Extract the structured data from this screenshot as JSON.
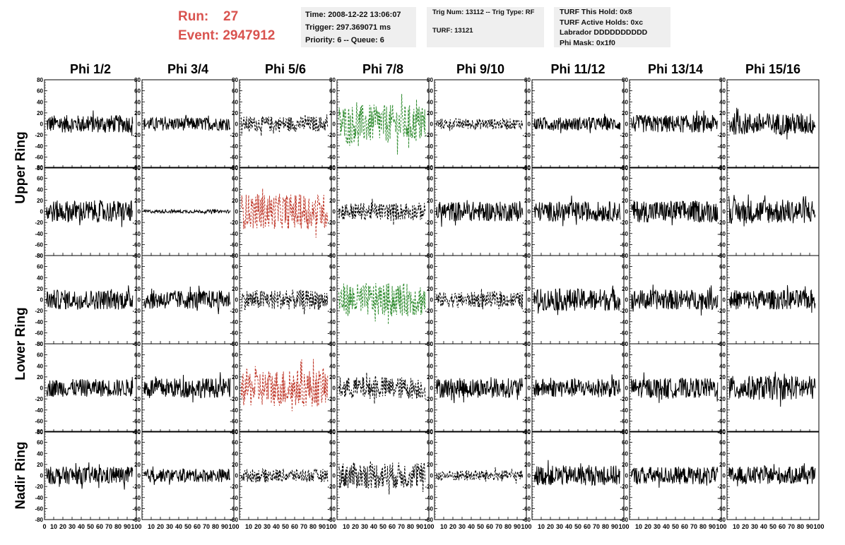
{
  "header": {
    "run_label": "Run:",
    "run_value": "27",
    "event_label": "Event:",
    "event_value": "2947912",
    "time": "Time: 2008-12-22 13:06:07",
    "trigger": "Trigger: 297.369071 ms",
    "priority": "Priority: 6 -- Queue: 6",
    "trig_num": "Trig Num: 13112 -- Trig Type: RF",
    "turf": "TURF: 13121",
    "turf_this_hold": "TURF This Hold: 0x8",
    "turf_active_holds": "TURF Active Holds: 0xc",
    "labrador": "Labrador DDDDDDDDDD",
    "phi_mask": "Phi Mask: 0x1f0"
  },
  "chart_data": {
    "type": "line",
    "columns": [
      "Phi 1/2",
      "Phi 3/4",
      "Phi 5/6",
      "Phi 7/8",
      "Phi 9/10",
      "Phi 11/12",
      "Phi 13/14",
      "Phi 15/16"
    ],
    "ring_labels": [
      "Upper Ring",
      "Lower Ring",
      "Nadir Ring"
    ],
    "rows_per_ring": [
      2,
      2,
      1
    ],
    "ylim": [
      -80,
      80
    ],
    "yticks": [
      -80,
      -60,
      -40,
      -20,
      0,
      20,
      40,
      60,
      80
    ],
    "xlim": [
      0,
      100
    ],
    "xticks": [
      0,
      10,
      20,
      30,
      40,
      50,
      60,
      70,
      80,
      90,
      100
    ],
    "panels": [
      [
        {
          "style": "solid",
          "color": "#000000",
          "amp": 16
        },
        {
          "style": "solid",
          "color": "#000000",
          "amp": 12
        },
        {
          "style": "dashed",
          "color": "#000000",
          "amp": 14
        },
        {
          "style": "dashed",
          "color": "#2e8b2e",
          "amp": 35
        },
        {
          "style": "dashed",
          "color": "#000000",
          "amp": 10
        },
        {
          "style": "solid",
          "color": "#000000",
          "amp": 12
        },
        {
          "style": "solid",
          "color": "#000000",
          "amp": 16
        },
        {
          "style": "solid",
          "color": "#000000",
          "amp": 20
        }
      ],
      [
        {
          "style": "solid",
          "color": "#000000",
          "amp": 20
        },
        {
          "style": "solid",
          "color": "#000000",
          "amp": 3
        },
        {
          "style": "dashed",
          "color": "#c0392b",
          "amp": 32
        },
        {
          "style": "dashed",
          "color": "#000000",
          "amp": 16
        },
        {
          "style": "solid",
          "color": "#000000",
          "amp": 18
        },
        {
          "style": "solid",
          "color": "#000000",
          "amp": 18
        },
        {
          "style": "solid",
          "color": "#000000",
          "amp": 20
        },
        {
          "style": "solid",
          "color": "#000000",
          "amp": 22
        }
      ],
      [
        {
          "style": "solid",
          "color": "#000000",
          "amp": 18
        },
        {
          "style": "solid",
          "color": "#000000",
          "amp": 17
        },
        {
          "style": "dashed",
          "color": "#000000",
          "amp": 18
        },
        {
          "style": "dashed",
          "color": "#2e8b2e",
          "amp": 30
        },
        {
          "style": "dashed",
          "color": "#000000",
          "amp": 14
        },
        {
          "style": "solid",
          "color": "#000000",
          "amp": 20
        },
        {
          "style": "solid",
          "color": "#000000",
          "amp": 18
        },
        {
          "style": "solid",
          "color": "#000000",
          "amp": 18
        }
      ],
      [
        {
          "style": "solid",
          "color": "#000000",
          "amp": 16
        },
        {
          "style": "solid",
          "color": "#000000",
          "amp": 18
        },
        {
          "style": "dashed",
          "color": "#c0392b",
          "amp": 34
        },
        {
          "style": "dashed",
          "color": "#000000",
          "amp": 20
        },
        {
          "style": "solid",
          "color": "#000000",
          "amp": 18
        },
        {
          "style": "solid",
          "color": "#000000",
          "amp": 17
        },
        {
          "style": "solid",
          "color": "#000000",
          "amp": 18
        },
        {
          "style": "solid",
          "color": "#000000",
          "amp": 22
        }
      ],
      [
        {
          "style": "solid",
          "color": "#000000",
          "amp": 16
        },
        {
          "style": "solid",
          "color": "#000000",
          "amp": 12
        },
        {
          "style": "dashed",
          "color": "#000000",
          "amp": 12
        },
        {
          "style": "dashed",
          "color": "#000000",
          "amp": 24
        },
        {
          "style": "dashed",
          "color": "#000000",
          "amp": 10
        },
        {
          "style": "solid",
          "color": "#000000",
          "amp": 18
        },
        {
          "style": "solid",
          "color": "#000000",
          "amp": 16
        },
        {
          "style": "solid",
          "color": "#000000",
          "amp": 16
        }
      ]
    ]
  }
}
